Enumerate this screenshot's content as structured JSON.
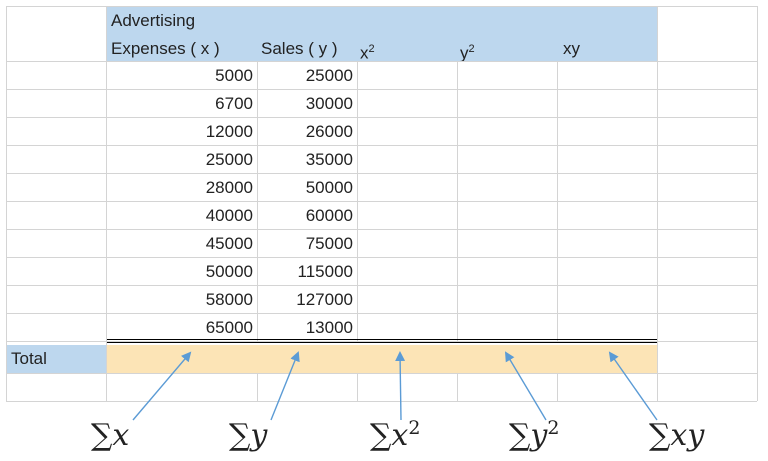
{
  "headers": {
    "adv_line1": "Advertising",
    "adv_line2": "Expenses ( x )",
    "sales": "Sales ( y )",
    "x2_base": "x",
    "x2_exp": "2",
    "y2_base": "y",
    "y2_exp": "2",
    "xy": "xy"
  },
  "rows": [
    {
      "x": "5000",
      "y": "25000"
    },
    {
      "x": "6700",
      "y": "30000"
    },
    {
      "x": "12000",
      "y": "26000"
    },
    {
      "x": "25000",
      "y": "35000"
    },
    {
      "x": "28000",
      "y": "50000"
    },
    {
      "x": "40000",
      "y": "60000"
    },
    {
      "x": "45000",
      "y": "75000"
    },
    {
      "x": "50000",
      "y": "115000"
    },
    {
      "x": "58000",
      "y": "127000"
    },
    {
      "x": "65000",
      "y": "13000"
    }
  ],
  "total_label": "Total",
  "formulas": {
    "sum_x": {
      "sym": "∑",
      "var": "x",
      "exp": ""
    },
    "sum_y": {
      "sym": "∑",
      "var": "y",
      "exp": ""
    },
    "sum_x2": {
      "sym": "∑",
      "var": "x",
      "exp": "2"
    },
    "sum_y2": {
      "sym": "∑",
      "var": "y",
      "exp": "2"
    },
    "sum_xy": {
      "sym": "∑",
      "var": "xy",
      "exp": ""
    }
  },
  "colors": {
    "header_fill": "#bdd7ee",
    "total_fill": "#fce4b6",
    "arrow": "#5b9bd5"
  }
}
